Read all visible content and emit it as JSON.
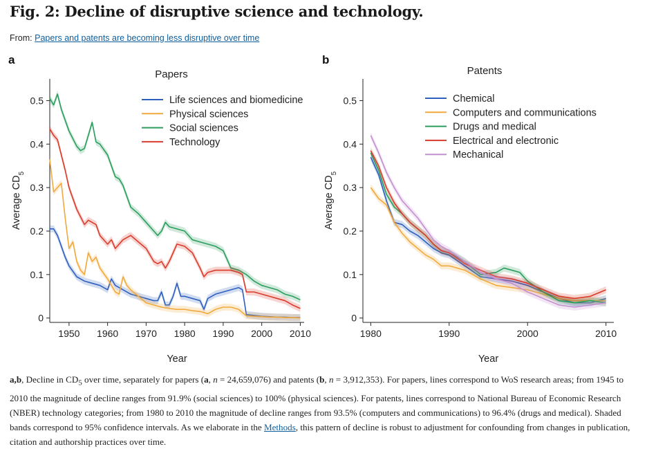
{
  "figure": {
    "title": "Fig. 2: Decline of disruptive science and technology.",
    "from_prefix": "From:",
    "from_link": "Papers and patents are becoming less disruptive over time"
  },
  "caption": {
    "p1_bold": "a",
    "p1_sep": ",",
    "p2_bold": "b",
    "s1": ", Decline in CD",
    "sub": "5",
    "s2": " over time, separately for papers (",
    "a_bold": "a",
    "s3": ", ",
    "n_italic": "n",
    "s4": " = 24,659,076) and patents (",
    "b_bold": "b",
    "s5": ", ",
    "n2_italic": "n",
    "s6": " = 3,912,353). For papers, lines correspond to WoS research areas; from 1945 to 2010 the magnitude of decline ranges from 91.9% (social sciences) to 100% (physical sciences). For patents, lines correspond to National Bureau of Economic Research (NBER) technology categories; from 1980 to 2010 the magnitude of decline ranges from 93.5% (computers and communications) to 96.4% (drugs and medical). Shaded bands correspond to 95% confidence intervals. As we elaborate in the ",
    "methods_link": "Methods",
    "s7": ", this pattern of decline is robust to adjustment for confounding from changes in publication, citation and authorship practices over time."
  },
  "chart_data": [
    {
      "panel": "a",
      "type": "line",
      "title": "Papers",
      "xlabel": "Year",
      "ylabel": "Average CD",
      "ylabel_sub": "5",
      "xlim": [
        1945,
        2011
      ],
      "ylim": [
        -0.01,
        0.55
      ],
      "xticks": [
        "1950",
        "1960",
        "1970",
        "1980",
        "1990",
        "2000",
        "2010"
      ],
      "xtick_values": [
        1950,
        1960,
        1970,
        1980,
        1990,
        2000,
        2010
      ],
      "yticks": [
        "0",
        "0.1",
        "0.2",
        "0.3",
        "0.4",
        "0.5"
      ],
      "ytick_values": [
        0,
        0.1,
        0.2,
        0.3,
        0.4,
        0.5
      ],
      "legend_position": "top-right",
      "series": [
        {
          "name": "Life sciences and biomedicine",
          "color": "#2e5fbf",
          "x": [
            1945,
            1946,
            1947,
            1948,
            1949,
            1950,
            1952,
            1954,
            1956,
            1958,
            1959,
            1960,
            1961,
            1962,
            1964,
            1966,
            1968,
            1970,
            1972,
            1973,
            1974,
            1975,
            1976,
            1977,
            1978,
            1979,
            1980,
            1982,
            1984,
            1985,
            1986,
            1987,
            1988,
            1990,
            1992,
            1994,
            1995,
            1996,
            1998,
            2000,
            2002,
            2004,
            2006,
            2008,
            2010
          ],
          "y": [
            0.205,
            0.205,
            0.19,
            0.165,
            0.14,
            0.12,
            0.095,
            0.085,
            0.08,
            0.075,
            0.07,
            0.065,
            0.09,
            0.075,
            0.065,
            0.055,
            0.05,
            0.045,
            0.04,
            0.04,
            0.06,
            0.03,
            0.03,
            0.05,
            0.08,
            0.05,
            0.05,
            0.045,
            0.04,
            0.02,
            0.045,
            0.05,
            0.055,
            0.06,
            0.065,
            0.07,
            0.065,
            0.008,
            0.006,
            0.004,
            0.003,
            0.002,
            0.002,
            0.001,
            0.001
          ]
        },
        {
          "name": "Physical sciences",
          "color": "#f2a93b",
          "x": [
            1945,
            1946,
            1947,
            1948,
            1949,
            1950,
            1951,
            1952,
            1953,
            1954,
            1955,
            1956,
            1957,
            1958,
            1960,
            1962,
            1963,
            1964,
            1965,
            1966,
            1968,
            1970,
            1972,
            1974,
            1976,
            1978,
            1980,
            1982,
            1984,
            1986,
            1988,
            1990,
            1992,
            1994,
            1996,
            1998,
            2000,
            2002,
            2004,
            2006,
            2008,
            2010
          ],
          "y": [
            0.365,
            0.29,
            0.3,
            0.31,
            0.23,
            0.16,
            0.175,
            0.13,
            0.11,
            0.1,
            0.15,
            0.13,
            0.14,
            0.115,
            0.09,
            0.06,
            0.055,
            0.095,
            0.075,
            0.065,
            0.05,
            0.035,
            0.03,
            0.025,
            0.022,
            0.02,
            0.02,
            0.017,
            0.015,
            0.01,
            0.02,
            0.025,
            0.025,
            0.02,
            0.005,
            0.004,
            0.003,
            0.002,
            0.002,
            0.001,
            0.001,
            0.0
          ]
        },
        {
          "name": "Social sciences",
          "color": "#2a9d5c",
          "x": [
            1945,
            1946,
            1947,
            1948,
            1950,
            1952,
            1953,
            1954,
            1955,
            1956,
            1957,
            1958,
            1960,
            1962,
            1963,
            1964,
            1966,
            1968,
            1970,
            1972,
            1973,
            1974,
            1975,
            1976,
            1978,
            1980,
            1982,
            1984,
            1986,
            1988,
            1990,
            1992,
            1994,
            1996,
            1998,
            2000,
            2002,
            2004,
            2006,
            2008,
            2010
          ],
          "y": [
            0.505,
            0.49,
            0.515,
            0.48,
            0.43,
            0.395,
            0.385,
            0.39,
            0.42,
            0.45,
            0.405,
            0.4,
            0.375,
            0.325,
            0.32,
            0.305,
            0.255,
            0.24,
            0.22,
            0.2,
            0.19,
            0.2,
            0.22,
            0.21,
            0.205,
            0.2,
            0.18,
            0.175,
            0.17,
            0.165,
            0.155,
            0.115,
            0.11,
            0.1,
            0.085,
            0.075,
            0.07,
            0.065,
            0.055,
            0.05,
            0.042
          ]
        },
        {
          "name": "Technology",
          "color": "#d93a2b",
          "x": [
            1945,
            1946,
            1947,
            1948,
            1949,
            1950,
            1952,
            1954,
            1955,
            1956,
            1957,
            1958,
            1960,
            1961,
            1962,
            1964,
            1966,
            1968,
            1970,
            1972,
            1973,
            1974,
            1975,
            1976,
            1977,
            1978,
            1980,
            1982,
            1984,
            1985,
            1986,
            1988,
            1990,
            1992,
            1994,
            1995,
            1996,
            1998,
            2000,
            2002,
            2004,
            2006,
            2008,
            2010
          ],
          "y": [
            0.435,
            0.42,
            0.41,
            0.375,
            0.34,
            0.3,
            0.25,
            0.215,
            0.225,
            0.22,
            0.215,
            0.19,
            0.17,
            0.18,
            0.16,
            0.18,
            0.19,
            0.175,
            0.16,
            0.13,
            0.125,
            0.13,
            0.115,
            0.13,
            0.15,
            0.17,
            0.165,
            0.15,
            0.115,
            0.095,
            0.105,
            0.11,
            0.11,
            0.11,
            0.105,
            0.1,
            0.06,
            0.06,
            0.055,
            0.05,
            0.045,
            0.04,
            0.03,
            0.022
          ]
        }
      ]
    },
    {
      "panel": "b",
      "type": "line",
      "title": "Patents",
      "xlabel": "Year",
      "ylabel": "Average CD",
      "ylabel_sub": "5",
      "xlim": [
        1979,
        2011
      ],
      "ylim": [
        -0.01,
        0.55
      ],
      "xticks": [
        "1980",
        "1990",
        "2000",
        "2010"
      ],
      "xtick_values": [
        1980,
        1990,
        2000,
        2010
      ],
      "yticks": [
        "0",
        "0.1",
        "0.2",
        "0.3",
        "0.4",
        "0.5"
      ],
      "ytick_values": [
        0,
        0.1,
        0.2,
        0.3,
        0.4,
        0.5
      ],
      "legend_position": "top-right",
      "series": [
        {
          "name": "Chemical",
          "color": "#2e5fbf",
          "x": [
            1980,
            1981,
            1982,
            1983,
            1984,
            1985,
            1986,
            1987,
            1988,
            1989,
            1990,
            1992,
            1994,
            1996,
            1998,
            2000,
            2002,
            2004,
            2006,
            2008,
            2010
          ],
          "y": [
            0.37,
            0.33,
            0.27,
            0.22,
            0.215,
            0.2,
            0.19,
            0.175,
            0.16,
            0.15,
            0.145,
            0.12,
            0.095,
            0.09,
            0.085,
            0.075,
            0.06,
            0.045,
            0.035,
            0.035,
            0.045
          ]
        },
        {
          "name": "Computers and communications",
          "color": "#f2a93b",
          "x": [
            1980,
            1981,
            1982,
            1983,
            1984,
            1985,
            1986,
            1987,
            1988,
            1989,
            1990,
            1992,
            1994,
            1996,
            1998,
            2000,
            2002,
            2004,
            2006,
            2008,
            2010
          ],
          "y": [
            0.3,
            0.275,
            0.26,
            0.22,
            0.195,
            0.175,
            0.16,
            0.145,
            0.135,
            0.12,
            0.12,
            0.11,
            0.09,
            0.075,
            0.07,
            0.065,
            0.055,
            0.045,
            0.04,
            0.04,
            0.04
          ]
        },
        {
          "name": "Drugs and medical",
          "color": "#2a9d5c",
          "x": [
            1980,
            1981,
            1982,
            1983,
            1984,
            1985,
            1986,
            1987,
            1988,
            1989,
            1990,
            1992,
            1994,
            1996,
            1997,
            1998,
            1999,
            2000,
            2002,
            2004,
            2006,
            2008,
            2010
          ],
          "y": [
            0.38,
            0.34,
            0.285,
            0.255,
            0.24,
            0.22,
            0.205,
            0.19,
            0.17,
            0.155,
            0.15,
            0.13,
            0.1,
            0.105,
            0.115,
            0.11,
            0.105,
            0.085,
            0.06,
            0.04,
            0.035,
            0.04,
            0.035
          ]
        },
        {
          "name": "Electrical and electronic",
          "color": "#d93a2b",
          "x": [
            1980,
            1981,
            1982,
            1983,
            1984,
            1985,
            1986,
            1987,
            1988,
            1989,
            1990,
            1992,
            1994,
            1996,
            1998,
            2000,
            2002,
            2004,
            2006,
            2008,
            2010
          ],
          "y": [
            0.385,
            0.35,
            0.3,
            0.265,
            0.24,
            0.22,
            0.205,
            0.19,
            0.17,
            0.155,
            0.15,
            0.125,
            0.11,
            0.095,
            0.09,
            0.08,
            0.065,
            0.05,
            0.045,
            0.05,
            0.065
          ]
        },
        {
          "name": "Mechanical",
          "color": "#c48fd1",
          "x": [
            1980,
            1981,
            1982,
            1983,
            1984,
            1985,
            1986,
            1987,
            1988,
            1989,
            1990,
            1992,
            1994,
            1996,
            1998,
            2000,
            2002,
            2004,
            2006,
            2008,
            2010
          ],
          "y": [
            0.42,
            0.38,
            0.335,
            0.3,
            0.27,
            0.25,
            0.23,
            0.205,
            0.18,
            0.165,
            0.155,
            0.13,
            0.105,
            0.09,
            0.08,
            0.06,
            0.045,
            0.03,
            0.025,
            0.03,
            0.035
          ]
        }
      ]
    }
  ]
}
